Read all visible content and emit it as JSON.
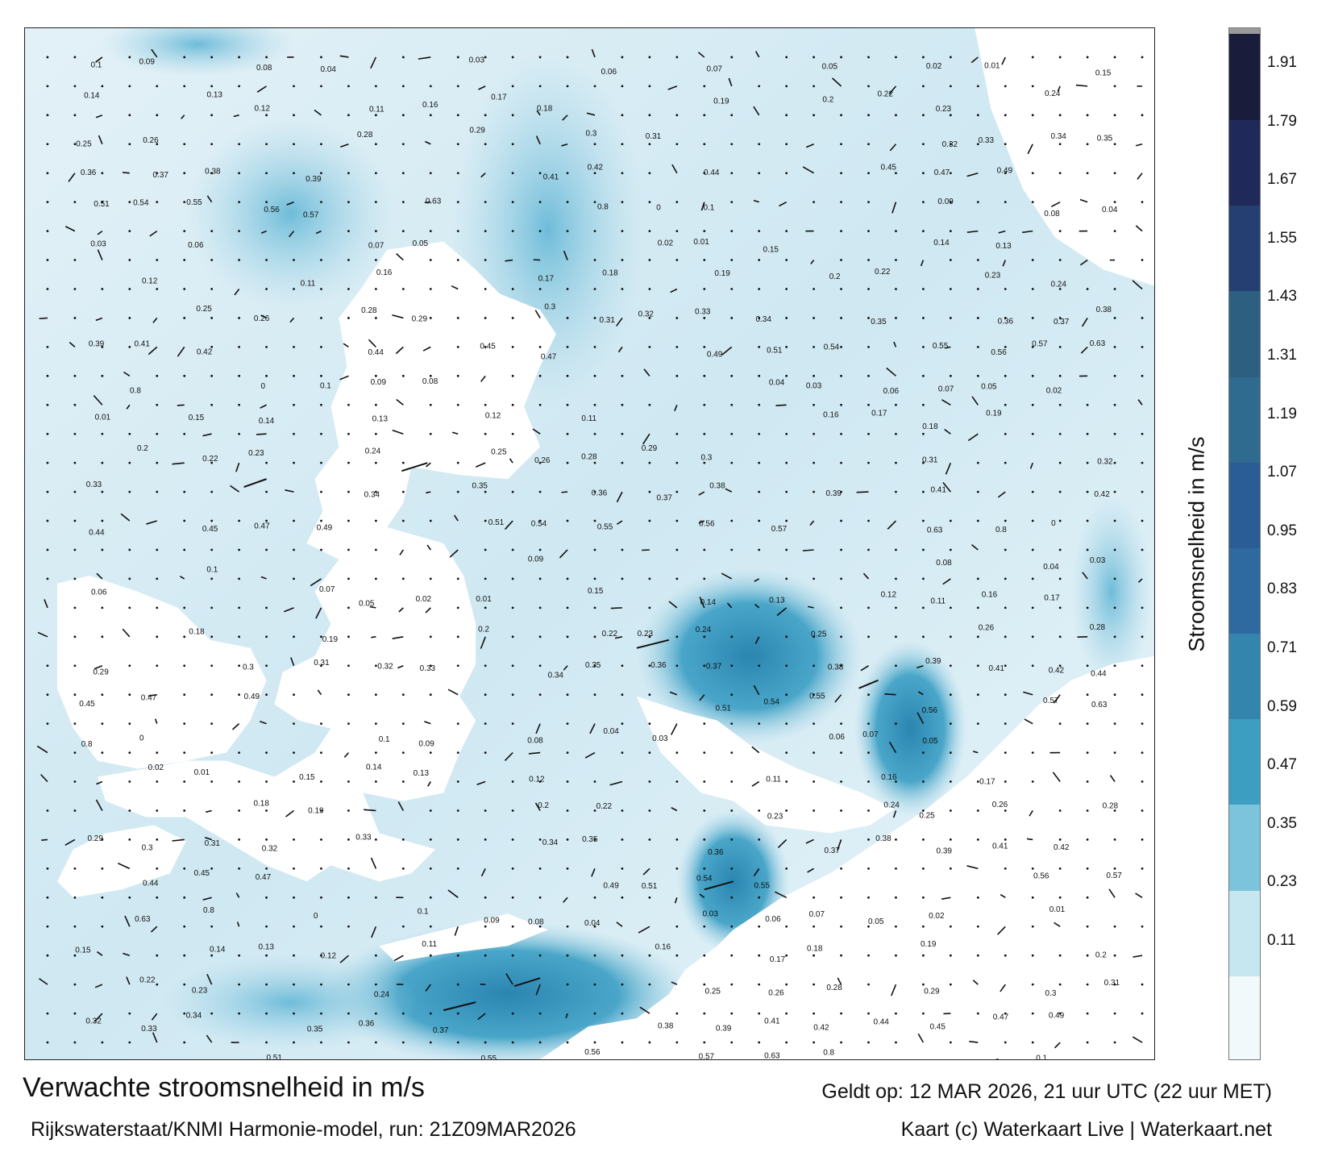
{
  "map": {
    "colors": {
      "land": "#ffffff",
      "sea_light": "#d7ecf4",
      "sea_mid": "#a9d7e8",
      "sea_strong": "#4aa6c9",
      "sea_deep": "#2a86b0"
    },
    "sample_values": [
      {
        "text": "0.1"
      },
      {
        "text": "0.09"
      },
      {
        "text": "0.08"
      },
      {
        "text": "0.04"
      },
      {
        "text": "0.03"
      },
      {
        "text": "0.06"
      },
      {
        "text": "0.07"
      },
      {
        "text": "0.05"
      },
      {
        "text": "0.02"
      },
      {
        "text": "0.01"
      },
      {
        "text": "0.15"
      },
      {
        "text": "0.14"
      },
      {
        "text": "0.13"
      },
      {
        "text": "0.12"
      },
      {
        "text": "0.11"
      },
      {
        "text": "0.16"
      },
      {
        "text": "0.17"
      },
      {
        "text": "0.18"
      },
      {
        "text": "0.19"
      },
      {
        "text": "0.2"
      },
      {
        "text": "0.22"
      },
      {
        "text": "0.23"
      },
      {
        "text": "0.24"
      },
      {
        "text": "0.25"
      },
      {
        "text": "0.26"
      },
      {
        "text": "0.28"
      },
      {
        "text": "0.29"
      },
      {
        "text": "0.3"
      },
      {
        "text": "0.31"
      },
      {
        "text": "0.32"
      },
      {
        "text": "0.33"
      },
      {
        "text": "0.34"
      },
      {
        "text": "0.35"
      },
      {
        "text": "0.36"
      },
      {
        "text": "0.37"
      },
      {
        "text": "0.38"
      },
      {
        "text": "0.39"
      },
      {
        "text": "0.41"
      },
      {
        "text": "0.42"
      },
      {
        "text": "0.44"
      },
      {
        "text": "0.45"
      },
      {
        "text": "0.47"
      },
      {
        "text": "0.49"
      },
      {
        "text": "0.51"
      },
      {
        "text": "0.54"
      },
      {
        "text": "0.55"
      },
      {
        "text": "0.56"
      },
      {
        "text": "0.57"
      },
      {
        "text": "0.63"
      },
      {
        "text": "0.8"
      },
      {
        "text": "0"
      }
    ]
  },
  "colorbar": {
    "title": "Stroomsnelheid in m/s",
    "ticks": [
      "1.91",
      "1.79",
      "1.67",
      "1.55",
      "1.43",
      "1.31",
      "1.19",
      "1.07",
      "0.95",
      "0.83",
      "0.71",
      "0.59",
      "0.47",
      "0.35",
      "0.23",
      "0.11"
    ],
    "stops": [
      {
        "color": "#f2f9fb"
      },
      {
        "color": "#c6e6f0"
      },
      {
        "color": "#7cc4dc"
      },
      {
        "color": "#3c9fc1"
      },
      {
        "color": "#3485ad"
      },
      {
        "color": "#2e6aa0"
      },
      {
        "color": "#2a5c95"
      },
      {
        "color": "#2f6a8f"
      },
      {
        "color": "#2d5f80"
      },
      {
        "color": "#253f73"
      },
      {
        "color": "#1f2a5a"
      },
      {
        "color": "#1a1c3c"
      }
    ]
  },
  "footer": {
    "title": "Verwachte stroomsnelheid in m/s",
    "subtitle": "Rijkswaterstaat/KNMI Harmonie-model, run: 21Z09MAR2026",
    "valid": "Geldt op: 12 MAR 2026, 21 uur UTC (22 uur MET)",
    "credit": "Kaart (c) Waterkaart Live | Waterkaart.net"
  }
}
